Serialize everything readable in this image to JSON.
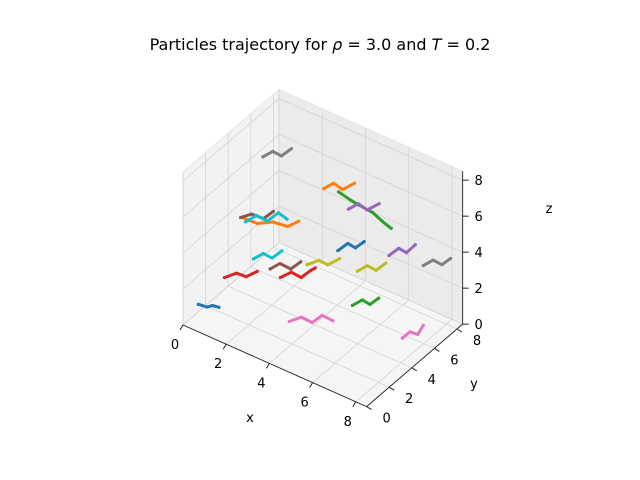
{
  "chart_data": {
    "type": "line",
    "projection": "3d",
    "title": "Particles trajectory for ρ = 3.0 and T = 0.2",
    "title_parts": {
      "prefix": "Particles trajectory for ",
      "rho_symbol": "ρ",
      "rho_value": " = 3.0 and ",
      "temp_symbol": "T",
      "temp_value": " = 0.2"
    },
    "xlabel": "x",
    "ylabel": "y",
    "zlabel": "z",
    "xlim": [
      0,
      8.5
    ],
    "ylim": [
      0,
      8.5
    ],
    "zlim": [
      0,
      8.5
    ],
    "xticks": [
      "0",
      "2",
      "4",
      "6",
      "8"
    ],
    "yticks": [
      "0",
      "2",
      "4",
      "6",
      "8"
    ],
    "zticks": [
      "0",
      "2",
      "4",
      "6",
      "8"
    ],
    "grid": true,
    "legend": "none",
    "colors": [
      "#1f77b4",
      "#ff7f0e",
      "#2ca02c",
      "#d62728",
      "#9467bd",
      "#8c564b",
      "#e377c2",
      "#7f7f7f",
      "#bcbd22",
      "#17becf"
    ],
    "series": [
      {
        "values": [
          [
            0.5,
            0.4,
            1.2
          ],
          [
            0.8,
            0.6,
            1.1
          ],
          [
            1.1,
            0.5,
            1.4
          ],
          [
            1.3,
            0.7,
            1.3
          ]
        ]
      },
      {
        "values": [
          [
            2.0,
            1.5,
            6.2
          ],
          [
            2.5,
            1.8,
            6.0
          ],
          [
            3.1,
            2.0,
            6.3
          ],
          [
            3.6,
            2.4,
            6.1
          ],
          [
            4.0,
            2.6,
            6.5
          ]
        ]
      },
      {
        "values": [
          [
            5.0,
            4.2,
            7.8
          ],
          [
            5.4,
            4.5,
            7.4
          ],
          [
            5.6,
            4.9,
            7.0
          ],
          [
            6.0,
            5.3,
            6.6
          ],
          [
            6.3,
            5.6,
            6.1
          ],
          [
            6.5,
            6.0,
            5.6
          ]
        ]
      },
      {
        "values": [
          [
            3.2,
            2.5,
            3.0
          ],
          [
            3.6,
            2.7,
            3.4
          ],
          [
            3.9,
            3.0,
            3.1
          ],
          [
            4.2,
            3.3,
            3.5
          ],
          [
            4.5,
            3.1,
            3.9
          ]
        ]
      },
      {
        "values": [
          [
            6.5,
            5.8,
            4.2
          ],
          [
            6.8,
            6.1,
            4.6
          ],
          [
            7.0,
            6.4,
            4.3
          ],
          [
            7.3,
            6.6,
            4.8
          ]
        ]
      },
      {
        "values": [
          [
            1.2,
            2.8,
            5.1
          ],
          [
            1.6,
            3.0,
            5.4
          ],
          [
            2.0,
            3.3,
            5.2
          ],
          [
            2.3,
            3.6,
            5.6
          ]
        ]
      },
      {
        "values": [
          [
            4.4,
            1.0,
            2.0
          ],
          [
            4.8,
            1.3,
            2.3
          ],
          [
            5.2,
            1.5,
            2.1
          ],
          [
            5.5,
            1.8,
            2.5
          ],
          [
            5.9,
            2.0,
            2.3
          ]
        ]
      },
      {
        "values": [
          [
            7.2,
            7.5,
            3.1
          ],
          [
            7.5,
            7.8,
            3.4
          ],
          [
            7.8,
            8.0,
            3.2
          ],
          [
            8.1,
            8.2,
            3.6
          ]
        ]
      },
      {
        "values": [
          [
            2.6,
            6.0,
            1.5
          ],
          [
            3.0,
            6.3,
            1.8
          ],
          [
            3.3,
            6.5,
            1.6
          ],
          [
            3.7,
            6.8,
            2.0
          ]
        ]
      },
      {
        "values": [
          [
            0.8,
            4.0,
            4.0
          ],
          [
            1.1,
            4.4,
            4.3
          ],
          [
            1.5,
            4.6,
            4.1
          ],
          [
            1.8,
            5.0,
            4.5
          ],
          [
            2.1,
            5.2,
            4.2
          ]
        ]
      },
      {
        "values": [
          [
            5.6,
            3.0,
            5.5
          ],
          [
            5.9,
            3.3,
            5.9
          ],
          [
            6.1,
            3.6,
            5.6
          ],
          [
            6.4,
            3.8,
            6.0
          ]
        ]
      },
      {
        "values": [
          [
            3.8,
            5.2,
            6.8
          ],
          [
            4.1,
            5.5,
            7.1
          ],
          [
            4.4,
            5.7,
            6.8
          ],
          [
            4.8,
            6.0,
            7.2
          ]
        ]
      },
      {
        "values": [
          [
            6.9,
            1.8,
            3.8
          ],
          [
            7.2,
            2.1,
            4.1
          ],
          [
            7.4,
            2.4,
            3.8
          ],
          [
            7.7,
            2.6,
            4.2
          ]
        ]
      },
      {
        "values": [
          [
            1.5,
            0.8,
            3.0
          ],
          [
            1.9,
            1.1,
            3.3
          ],
          [
            2.2,
            1.4,
            3.1
          ],
          [
            2.6,
            1.6,
            3.5
          ]
        ]
      },
      {
        "values": [
          [
            4.0,
            7.0,
            4.8
          ],
          [
            4.3,
            7.3,
            5.1
          ],
          [
            4.6,
            7.5,
            4.8
          ],
          [
            5.0,
            7.8,
            5.2
          ]
        ]
      },
      {
        "values": [
          [
            2.2,
            3.5,
            2.4
          ],
          [
            2.5,
            3.8,
            2.7
          ],
          [
            2.9,
            4.0,
            2.5
          ],
          [
            3.2,
            4.3,
            2.9
          ]
        ]
      },
      {
        "values": [
          [
            7.8,
            4.5,
            1.0
          ],
          [
            8.0,
            4.8,
            1.3
          ],
          [
            8.2,
            5.1,
            1.1
          ],
          [
            8.3,
            5.4,
            1.5
          ]
        ]
      },
      {
        "values": [
          [
            0.3,
            6.5,
            6.0
          ],
          [
            0.6,
            6.8,
            6.3
          ],
          [
            0.9,
            7.0,
            6.1
          ],
          [
            1.2,
            7.3,
            6.5
          ]
        ]
      },
      {
        "values": [
          [
            5.2,
            5.5,
            2.8
          ],
          [
            5.5,
            5.8,
            3.1
          ],
          [
            5.8,
            6.0,
            2.9
          ],
          [
            6.1,
            6.3,
            3.3
          ]
        ]
      },
      {
        "values": [
          [
            3.0,
            0.5,
            5.0
          ],
          [
            3.3,
            0.8,
            5.3
          ],
          [
            3.6,
            1.0,
            5.1
          ],
          [
            3.9,
            1.3,
            5.5
          ]
        ]
      }
    ]
  }
}
